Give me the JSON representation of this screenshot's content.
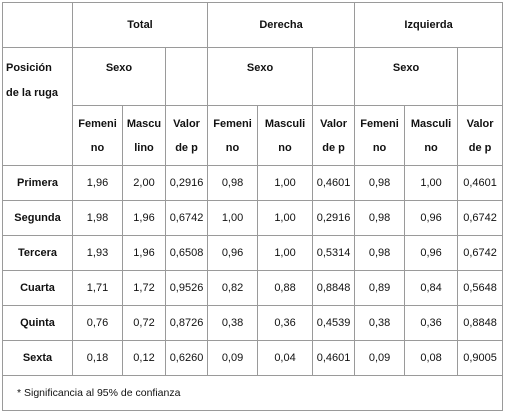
{
  "table": {
    "groups": [
      "Total",
      "Derecha",
      "Izquierda"
    ],
    "position_header": [
      "Posición",
      "de la ruga"
    ],
    "sex_header": [
      "Sexo",
      "Sexo",
      "Sexo"
    ],
    "subheaders": [
      [
        [
          "Femeni",
          "no"
        ],
        [
          "Mascu",
          "lino"
        ],
        [
          "Valor",
          "de p"
        ]
      ],
      [
        [
          "Femeni",
          "no"
        ],
        [
          "Masculi",
          "no"
        ],
        [
          "Valor",
          "de p"
        ]
      ],
      [
        [
          "Femeni",
          "no"
        ],
        [
          "Masculi",
          "no"
        ],
        [
          "Valor",
          "de p"
        ]
      ]
    ],
    "rows": [
      [
        "Primera",
        "1,96",
        "2,00",
        "0,2916",
        "0,98",
        "1,00",
        "0,4601",
        "0,98",
        "1,00",
        "0,4601"
      ],
      [
        "Segunda",
        "1,98",
        "1,96",
        "0,6742",
        "1,00",
        "1,00",
        "0,2916",
        "0,98",
        "0,96",
        "0,6742"
      ],
      [
        "Tercera",
        "1,93",
        "1,96",
        "0,6508",
        "0,96",
        "1,00",
        "0,5314",
        "0,98",
        "0,96",
        "0,6742"
      ],
      [
        "Cuarta",
        "1,71",
        "1,72",
        "0,9526",
        "0,82",
        "0,88",
        "0,8848",
        "0,89",
        "0,84",
        "0,5648"
      ],
      [
        "Quinta",
        "0,76",
        "0,72",
        "0,8726",
        "0,38",
        "0,36",
        "0,4539",
        "0,38",
        "0,36",
        "0,8848"
      ],
      [
        "Sexta",
        "0,18",
        "0,12",
        "0,6260",
        "0,09",
        "0,04",
        "0,4601",
        "0,09",
        "0,08",
        "0,9005"
      ]
    ],
    "footnote": "* Significancia al 95% de confianza"
  }
}
